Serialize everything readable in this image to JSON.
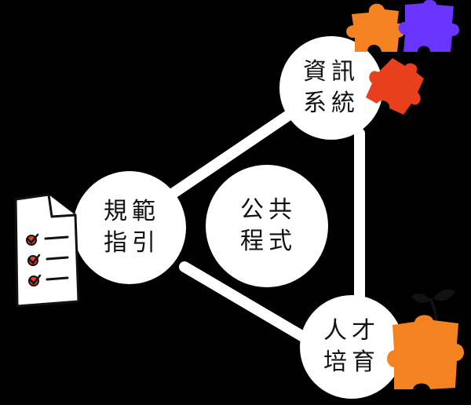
{
  "colors": {
    "background": "#000000",
    "node_fill": "#ffffff",
    "text": "#111111",
    "orange": "#f58220",
    "red_orange": "#e8401c",
    "purple": "#6a35ff",
    "checklist_accent": "#e8401c"
  },
  "center": {
    "line1": "公共",
    "line2": "程式"
  },
  "nodes": {
    "info_systems": {
      "line1": "資訊",
      "line2": "系統"
    },
    "norms": {
      "line1": "規範",
      "line2": "指引"
    },
    "talent": {
      "line1": "人才",
      "line2": "培育"
    }
  },
  "icons": {
    "checklist": "checklist-document-icon",
    "puzzle_orange": "puzzle-piece-icon",
    "puzzle_red": "puzzle-piece-icon",
    "puzzle_purple": "puzzle-piece-icon",
    "sprout": "sprout-puzzle-icon"
  }
}
